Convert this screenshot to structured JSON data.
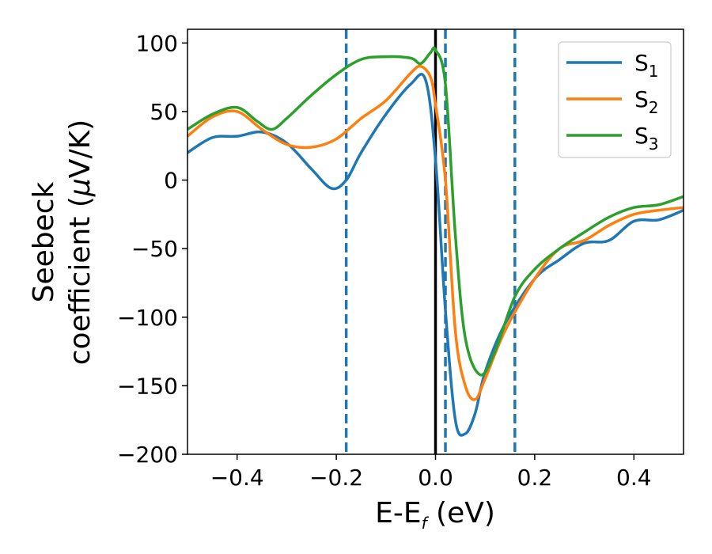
{
  "chart_data": {
    "type": "line",
    "title": "",
    "xlabel": {
      "main": "E-E",
      "sub": "f",
      "unit": " (eV)"
    },
    "ylabel": {
      "line1": "Seebeck",
      "line2_pre": "coefficient  (",
      "mu": "μ",
      "line2_post": "V/K)"
    },
    "xlim": [
      -0.5,
      0.5
    ],
    "ylim": [
      -200,
      110
    ],
    "xticks": [
      -0.4,
      -0.2,
      0.0,
      0.2,
      0.4
    ],
    "xtick_labels": [
      "−0.4",
      "−0.2",
      "0.0",
      "0.2",
      "0.4"
    ],
    "yticks": [
      100,
      50,
      0,
      -50,
      -100,
      -150,
      -200
    ],
    "ytick_labels": [
      "100",
      "50",
      "0",
      "−50",
      "−100",
      "−150",
      "−200"
    ],
    "grid": false,
    "legend_position": "top-right",
    "vlines": [
      {
        "x": -0.18,
        "style": "dashed",
        "color": "#1f77b4"
      },
      {
        "x": 0.0,
        "style": "solid",
        "color": "#000000"
      },
      {
        "x": 0.02,
        "style": "dashed",
        "color": "#1f77b4"
      },
      {
        "x": 0.16,
        "style": "dashed",
        "color": "#1f77b4"
      }
    ],
    "series": [
      {
        "name": "S",
        "sub": "1",
        "color": "#1f77b4",
        "x": [
          -0.5,
          -0.45,
          -0.4,
          -0.35,
          -0.3,
          -0.25,
          -0.21,
          -0.18,
          -0.15,
          -0.1,
          -0.05,
          -0.02,
          0.0,
          0.02,
          0.04,
          0.06,
          0.08,
          0.1,
          0.14,
          0.2,
          0.25,
          0.3,
          0.35,
          0.4,
          0.45,
          0.5
        ],
        "y": [
          20,
          31,
          32,
          35,
          27,
          8,
          -6,
          0,
          20,
          48,
          70,
          73,
          15,
          -95,
          -175,
          -185,
          -170,
          -140,
          -105,
          -72,
          -58,
          -46,
          -44,
          -30,
          -29,
          -22
        ]
      },
      {
        "name": "S",
        "sub": "2",
        "color": "#ff7f0e",
        "x": [
          -0.5,
          -0.45,
          -0.4,
          -0.35,
          -0.3,
          -0.25,
          -0.2,
          -0.15,
          -0.1,
          -0.05,
          -0.03,
          -0.01,
          0.0,
          0.02,
          0.04,
          0.06,
          0.08,
          0.1,
          0.14,
          0.2,
          0.25,
          0.3,
          0.35,
          0.4,
          0.45,
          0.5
        ],
        "y": [
          32,
          46,
          50,
          37,
          26,
          24,
          30,
          45,
          58,
          78,
          83,
          75,
          55,
          0,
          -110,
          -150,
          -160,
          -145,
          -110,
          -72,
          -50,
          -44,
          -33,
          -25,
          -22,
          -20
        ]
      },
      {
        "name": "S",
        "sub": "3",
        "color": "#2ca02c",
        "x": [
          -0.5,
          -0.45,
          -0.4,
          -0.36,
          -0.33,
          -0.3,
          -0.25,
          -0.2,
          -0.15,
          -0.1,
          -0.05,
          -0.03,
          -0.01,
          0.0,
          0.02,
          0.04,
          0.06,
          0.09,
          0.12,
          0.16,
          0.2,
          0.25,
          0.3,
          0.35,
          0.4,
          0.45,
          0.5
        ],
        "y": [
          37,
          48,
          53,
          43,
          37,
          45,
          62,
          77,
          88,
          90,
          89,
          85,
          93,
          95,
          70,
          -40,
          -115,
          -142,
          -125,
          -85,
          -65,
          -50,
          -38,
          -27,
          -20,
          -18,
          -12
        ]
      }
    ]
  }
}
